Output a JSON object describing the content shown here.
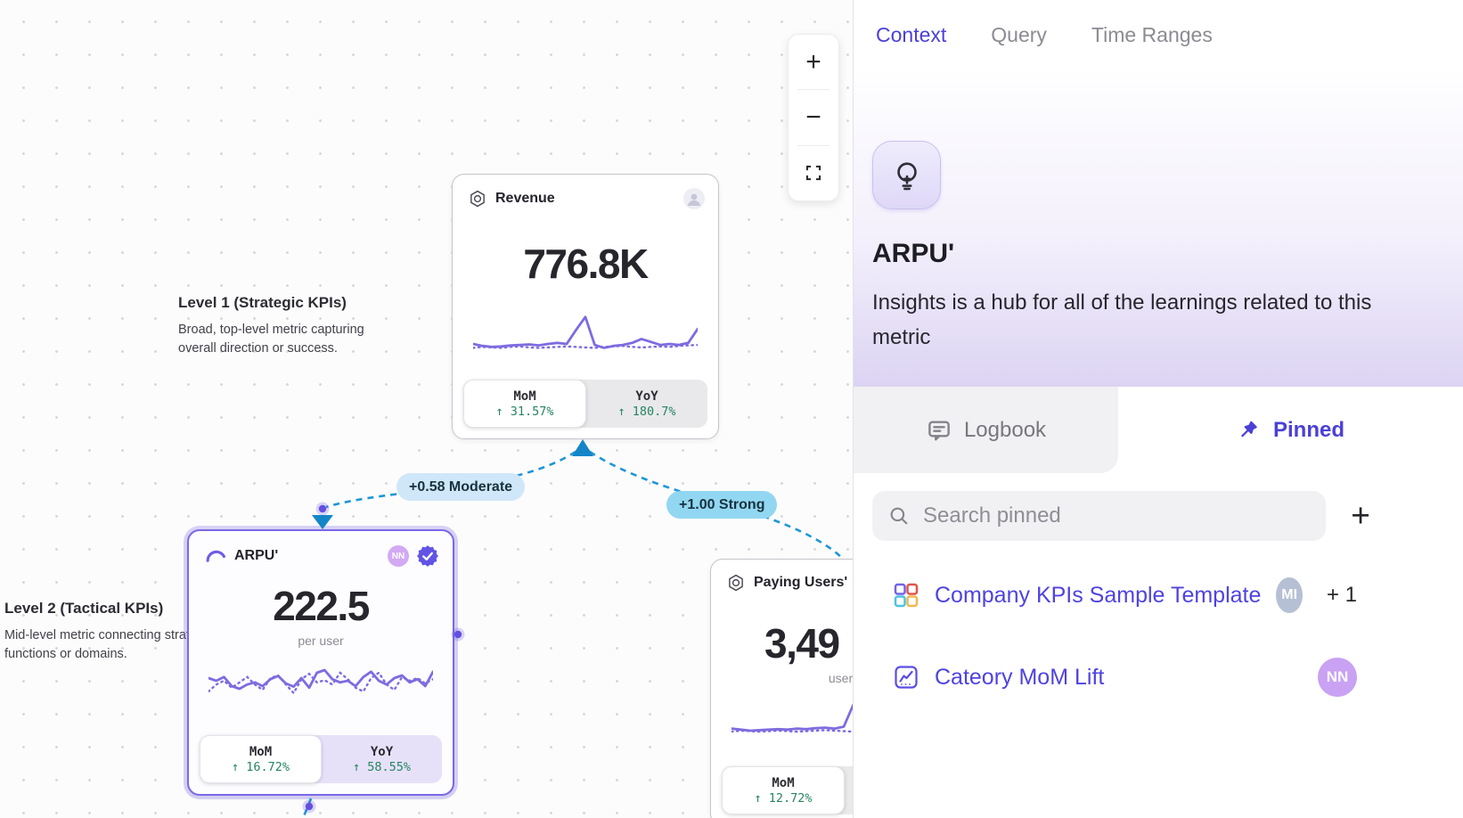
{
  "canvas": {
    "zoom_controls": {
      "zoom_in_label": "+",
      "zoom_out_label": "−"
    },
    "annotations": [
      {
        "title": "Level 1 (Strategic KPIs)",
        "description": "Broad, top-level metric capturing overall direction or success."
      },
      {
        "title": "Level 2 (Tactical KPIs)",
        "description": "Mid-level metric connecting strategy to functions or domains."
      }
    ],
    "edge_labels": [
      {
        "text": "+0.58 Moderate"
      },
      {
        "text": "+1.00 Strong"
      }
    ],
    "cards": {
      "revenue": {
        "title": "Revenue",
        "value": "776.8K",
        "toggle": {
          "mom_label": "MoM",
          "mom_value": "↑ 31.57%",
          "yoy_label": "YoY",
          "yoy_value": "↑ 180.7%"
        },
        "spark_solid": [
          66,
          70,
          72,
          71,
          69,
          68,
          67,
          69,
          66,
          64,
          66,
          38,
          12,
          68,
          74,
          70,
          68,
          64,
          56,
          62,
          68,
          66,
          68,
          64,
          36
        ],
        "spark_dotted": [
          74,
          72,
          73,
          74,
          72,
          71,
          73,
          74,
          73,
          72,
          71,
          72,
          73,
          74,
          72,
          71,
          70,
          72,
          73,
          72,
          71,
          72,
          70,
          69,
          68
        ]
      },
      "arpu": {
        "title": "ARPU'",
        "value": "222.5",
        "unit": "per user",
        "avatar_initials": "NN",
        "toggle": {
          "mom_label": "MoM",
          "mom_value": "↑ 16.72%",
          "yoy_label": "YoY",
          "yoy_value": "↑ 58.55%"
        },
        "spark_solid": [
          40,
          45,
          38,
          55,
          60,
          52,
          48,
          55,
          42,
          36,
          50,
          56,
          40,
          58,
          30,
          25,
          42,
          48,
          45,
          55,
          38,
          28,
          45,
          52,
          40,
          35,
          48,
          42,
          55,
          28
        ],
        "spark_dotted": [
          65,
          52,
          45,
          58,
          48,
          38,
          52,
          62,
          40,
          35,
          52,
          68,
          42,
          32,
          48,
          44,
          52,
          30,
          42,
          58,
          65,
          40,
          30,
          52,
          62,
          38,
          45,
          40,
          50,
          42
        ]
      },
      "paying_users": {
        "title": "Paying Users'",
        "value": "3,49",
        "unit": "users",
        "toggle": {
          "mom_label": "MoM",
          "mom_value": "↑ 12.72%"
        },
        "spark_solid": [
          62,
          64,
          66,
          65,
          64,
          63,
          64,
          62,
          63,
          61,
          60,
          62,
          58,
          15,
          62,
          64,
          62,
          60,
          62,
          63,
          62,
          58,
          60,
          57,
          55
        ],
        "spark_dotted": [
          68,
          66,
          67,
          68,
          67,
          66,
          67,
          68,
          67,
          66,
          65,
          66,
          67,
          68,
          66,
          65,
          66,
          67,
          66,
          65,
          66,
          67,
          66,
          65,
          64
        ]
      }
    }
  },
  "panel": {
    "tabs": [
      {
        "label": "Context",
        "active": true
      },
      {
        "label": "Query",
        "active": false
      },
      {
        "label": "Time Ranges",
        "active": false
      }
    ],
    "hero": {
      "metric_name": "ARPU'",
      "description": "Insights is a hub for all of the learnings related to this metric"
    },
    "section_tabs": {
      "logbook_label": "Logbook",
      "pinned_label": "Pinned"
    },
    "search": {
      "placeholder": "Search pinned",
      "add_label": "+"
    },
    "pinned_items": [
      {
        "label": "Company KPIs Sample Template",
        "avatar_initials": "MI",
        "extra_count": "+ 1"
      },
      {
        "label": "Cateory MoM Lift",
        "avatar_initials": "NN"
      }
    ]
  },
  "colors": {
    "accent_indigo": "#4b40d8",
    "sparkline_purple": "#7d6ce0",
    "positive_green": "#27855f",
    "edge_blue": "#1e96d6",
    "edge_label_moderate_bg": "#cfe7f8",
    "edge_label_strong_bg": "#92d7f1",
    "selection_purple": "#7b69e6"
  }
}
